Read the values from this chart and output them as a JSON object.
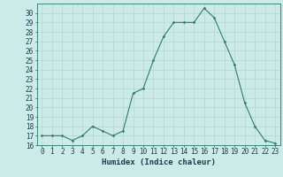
{
  "x": [
    0,
    1,
    2,
    3,
    4,
    5,
    6,
    7,
    8,
    9,
    10,
    11,
    12,
    13,
    14,
    15,
    16,
    17,
    18,
    19,
    20,
    21,
    22,
    23
  ],
  "y": [
    17,
    17,
    17,
    16.5,
    17,
    18,
    17.5,
    17,
    17.5,
    21.5,
    22,
    25,
    27.5,
    29,
    29,
    29,
    30.5,
    29.5,
    27,
    24.5,
    20.5,
    18,
    16.5,
    16.2
  ],
  "xlabel": "Humidex (Indice chaleur)",
  "ylim": [
    16,
    31
  ],
  "xlim": [
    -0.5,
    23.5
  ],
  "yticks": [
    16,
    17,
    18,
    19,
    20,
    21,
    22,
    23,
    24,
    25,
    26,
    27,
    28,
    29,
    30
  ],
  "xticks": [
    0,
    1,
    2,
    3,
    4,
    5,
    6,
    7,
    8,
    9,
    10,
    11,
    12,
    13,
    14,
    15,
    16,
    17,
    18,
    19,
    20,
    21,
    22,
    23
  ],
  "line_color": "#2e7d6e",
  "bg_color": "#cceae7",
  "grid_color": "#b0d8d4",
  "tick_fontsize": 5.5,
  "xlabel_fontsize": 6.5
}
